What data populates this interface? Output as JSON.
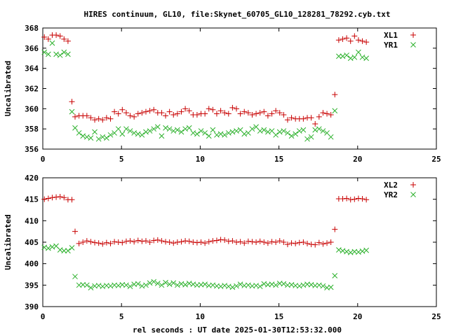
{
  "title": "HIRES continuum, GL10, file:Skynet_60705_GL10_128281_78292.cyb.txt",
  "xlabel": "rel seconds : UT date 2025-01-30T12:53:32.000",
  "colors": {
    "red": "#c80000",
    "green": "#2ab02a"
  },
  "chart_data": [
    {
      "type": "scatter",
      "ylabel": "Uncalibrated",
      "xlim": [
        0,
        25
      ],
      "ylim": [
        356,
        368
      ],
      "xticks": [
        0,
        5,
        10,
        15,
        20,
        25
      ],
      "yticks": [
        356,
        358,
        360,
        362,
        364,
        366,
        368
      ],
      "legend_position": "top-right",
      "series": [
        {
          "name": "XL1",
          "marker": "plus",
          "color": "#c80000",
          "x": [
            0.1,
            0.35,
            0.6,
            0.85,
            1.1,
            1.35,
            1.6,
            1.85,
            2.05,
            2.3,
            2.55,
            2.8,
            3.05,
            3.3,
            3.55,
            3.8,
            4.05,
            4.3,
            4.55,
            4.8,
            5.05,
            5.3,
            5.55,
            5.8,
            6.05,
            6.3,
            6.55,
            6.8,
            7.05,
            7.3,
            7.55,
            7.8,
            8.05,
            8.3,
            8.55,
            8.8,
            9.05,
            9.3,
            9.55,
            9.8,
            10.05,
            10.3,
            10.55,
            10.8,
            11.05,
            11.3,
            11.55,
            11.8,
            12.05,
            12.3,
            12.55,
            12.8,
            13.05,
            13.3,
            13.55,
            13.8,
            14.05,
            14.3,
            14.55,
            14.8,
            15.05,
            15.3,
            15.55,
            15.8,
            16.05,
            16.3,
            16.55,
            16.8,
            17.05,
            17.3,
            17.55,
            17.8,
            18.05,
            18.3,
            18.55,
            18.8,
            19.05,
            19.3,
            19.55,
            19.8,
            20.05,
            20.3,
            20.55
          ],
          "y": [
            367.1,
            366.9,
            367.3,
            367.3,
            367.2,
            366.9,
            366.7,
            360.7,
            359.2,
            359.3,
            359.3,
            359.3,
            359.1,
            358.9,
            359.0,
            358.9,
            359.1,
            359.0,
            359.7,
            359.5,
            359.9,
            359.6,
            359.3,
            359.2,
            359.5,
            359.6,
            359.7,
            359.8,
            359.9,
            359.6,
            359.6,
            359.3,
            359.7,
            359.4,
            359.5,
            359.7,
            360.0,
            359.8,
            359.4,
            359.4,
            359.5,
            359.5,
            360.0,
            359.9,
            359.5,
            359.8,
            359.6,
            359.5,
            360.1,
            360.0,
            359.5,
            359.7,
            359.6,
            359.4,
            359.5,
            359.6,
            359.7,
            359.3,
            359.5,
            359.8,
            359.6,
            359.4,
            358.9,
            359.1,
            359.0,
            359.0,
            359.0,
            359.1,
            359.1,
            358.5,
            359.2,
            359.6,
            359.5,
            359.4,
            361.4,
            366.8,
            366.9,
            367.0,
            366.7,
            367.2,
            366.8,
            366.7,
            366.6
          ]
        },
        {
          "name": "YR1",
          "marker": "cross",
          "color": "#2ab02a",
          "x": [
            0.1,
            0.35,
            0.6,
            0.85,
            1.1,
            1.35,
            1.6,
            1.85,
            2.05,
            2.3,
            2.55,
            2.8,
            3.05,
            3.3,
            3.55,
            3.8,
            4.05,
            4.3,
            4.55,
            4.8,
            5.05,
            5.3,
            5.55,
            5.8,
            6.05,
            6.3,
            6.55,
            6.8,
            7.05,
            7.3,
            7.55,
            7.8,
            8.05,
            8.3,
            8.55,
            8.8,
            9.05,
            9.3,
            9.55,
            9.8,
            10.05,
            10.3,
            10.55,
            10.8,
            11.05,
            11.3,
            11.55,
            11.8,
            12.05,
            12.3,
            12.55,
            12.8,
            13.05,
            13.3,
            13.55,
            13.8,
            14.05,
            14.3,
            14.55,
            14.8,
            15.05,
            15.3,
            15.55,
            15.8,
            16.05,
            16.3,
            16.55,
            16.8,
            17.05,
            17.3,
            17.55,
            17.8,
            18.05,
            18.3,
            18.55,
            18.8,
            19.05,
            19.3,
            19.55,
            19.8,
            20.05,
            20.3,
            20.55
          ],
          "y": [
            365.6,
            365.4,
            366.5,
            365.4,
            365.3,
            365.6,
            365.4,
            359.7,
            358.1,
            357.6,
            357.3,
            357.2,
            357.1,
            357.7,
            357.0,
            357.2,
            357.1,
            357.4,
            357.6,
            358.0,
            357.5,
            358.0,
            357.8,
            357.6,
            357.5,
            357.4,
            357.7,
            357.8,
            358.0,
            358.2,
            357.3,
            358.1,
            358.0,
            357.8,
            357.9,
            357.7,
            358.0,
            358.1,
            357.6,
            357.5,
            357.8,
            357.6,
            357.3,
            357.9,
            357.4,
            357.5,
            357.4,
            357.6,
            357.7,
            357.8,
            357.9,
            357.5,
            357.6,
            358.0,
            358.2,
            357.8,
            357.9,
            357.7,
            357.8,
            357.4,
            357.7,
            357.8,
            357.6,
            357.3,
            357.5,
            357.8,
            357.9,
            357.0,
            357.2,
            357.9,
            358.0,
            357.8,
            357.6,
            357.2,
            359.8,
            365.2,
            365.2,
            365.3,
            365.0,
            365.1,
            365.6,
            365.1,
            365.0
          ]
        }
      ]
    },
    {
      "type": "scatter",
      "ylabel": "Uncalibrated",
      "xlim": [
        0,
        25
      ],
      "ylim": [
        390,
        420
      ],
      "xticks": [
        0,
        5,
        10,
        15,
        20,
        25
      ],
      "yticks": [
        390,
        395,
        400,
        405,
        410,
        415,
        420
      ],
      "legend_position": "top-right",
      "series": [
        {
          "name": "XL2",
          "marker": "plus",
          "color": "#c80000",
          "x": [
            0.1,
            0.35,
            0.6,
            0.85,
            1.1,
            1.35,
            1.6,
            1.85,
            2.05,
            2.3,
            2.55,
            2.8,
            3.05,
            3.3,
            3.55,
            3.8,
            4.05,
            4.3,
            4.55,
            4.8,
            5.05,
            5.3,
            5.55,
            5.8,
            6.05,
            6.3,
            6.55,
            6.8,
            7.05,
            7.3,
            7.55,
            7.8,
            8.05,
            8.3,
            8.55,
            8.8,
            9.05,
            9.3,
            9.55,
            9.8,
            10.05,
            10.3,
            10.55,
            10.8,
            11.05,
            11.3,
            11.55,
            11.8,
            12.05,
            12.3,
            12.55,
            12.8,
            13.05,
            13.3,
            13.55,
            13.8,
            14.05,
            14.3,
            14.55,
            14.8,
            15.05,
            15.3,
            15.55,
            15.8,
            16.05,
            16.3,
            16.55,
            16.8,
            17.05,
            17.3,
            17.55,
            17.8,
            18.05,
            18.3,
            18.55,
            18.8,
            19.05,
            19.3,
            19.55,
            19.8,
            20.05,
            20.3,
            20.55
          ],
          "y": [
            415.0,
            415.2,
            415.4,
            415.5,
            415.6,
            415.4,
            414.9,
            414.9,
            407.5,
            404.7,
            405.0,
            405.3,
            405.1,
            404.9,
            404.8,
            404.6,
            404.9,
            404.7,
            405.1,
            405.0,
            404.9,
            405.2,
            405.3,
            405.1,
            405.4,
            405.2,
            405.3,
            405.0,
            405.4,
            405.5,
            405.3,
            405.1,
            405.0,
            404.8,
            405.0,
            405.1,
            405.3,
            405.2,
            405.0,
            404.9,
            405.0,
            404.8,
            405.1,
            405.3,
            405.4,
            405.6,
            405.5,
            405.2,
            405.3,
            405.0,
            405.1,
            404.8,
            405.2,
            405.1,
            405.0,
            405.2,
            405.0,
            404.8,
            405.1,
            405.0,
            405.3,
            405.0,
            404.5,
            404.8,
            404.7,
            404.9,
            405.0,
            404.7,
            404.5,
            404.4,
            404.9,
            404.6,
            404.8,
            405.0,
            408.0,
            415.1,
            415.1,
            415.2,
            414.9,
            415.0,
            415.2,
            415.1,
            414.9
          ]
        },
        {
          "name": "YR2",
          "marker": "cross",
          "color": "#2ab02a",
          "x": [
            0.1,
            0.35,
            0.6,
            0.85,
            1.1,
            1.35,
            1.6,
            1.85,
            2.05,
            2.3,
            2.55,
            2.8,
            3.05,
            3.3,
            3.55,
            3.8,
            4.05,
            4.3,
            4.55,
            4.8,
            5.05,
            5.3,
            5.55,
            5.8,
            6.05,
            6.3,
            6.55,
            6.8,
            7.05,
            7.3,
            7.55,
            7.8,
            8.05,
            8.3,
            8.55,
            8.8,
            9.05,
            9.3,
            9.55,
            9.8,
            10.05,
            10.3,
            10.55,
            10.8,
            11.05,
            11.3,
            11.55,
            11.8,
            12.05,
            12.3,
            12.55,
            12.8,
            13.05,
            13.3,
            13.55,
            13.8,
            14.05,
            14.3,
            14.55,
            14.8,
            15.05,
            15.3,
            15.55,
            15.8,
            16.05,
            16.3,
            16.55,
            16.8,
            17.05,
            17.3,
            17.55,
            17.8,
            18.05,
            18.3,
            18.55,
            18.8,
            19.05,
            19.3,
            19.55,
            19.8,
            20.05,
            20.3,
            20.55
          ],
          "y": [
            403.8,
            403.6,
            403.9,
            404.1,
            403.2,
            403.0,
            403.0,
            403.7,
            397.0,
            395.0,
            395.1,
            395.0,
            394.4,
            394.8,
            394.9,
            394.7,
            394.9,
            394.8,
            395.0,
            394.9,
            395.1,
            395.0,
            394.7,
            395.2,
            395.3,
            394.8,
            395.0,
            395.5,
            395.8,
            395.4,
            395.0,
            395.6,
            395.2,
            395.5,
            395.0,
            395.3,
            395.1,
            395.4,
            395.2,
            395.0,
            395.1,
            395.2,
            394.9,
            395.0,
            394.8,
            394.7,
            394.9,
            394.7,
            394.5,
            394.8,
            395.2,
            394.9,
            395.0,
            394.8,
            394.9,
            394.7,
            395.3,
            395.1,
            395.2,
            395.0,
            395.4,
            395.3,
            395.0,
            395.1,
            394.9,
            394.8,
            395.0,
            395.2,
            395.1,
            394.9,
            395.0,
            394.8,
            394.4,
            394.5,
            397.2,
            403.2,
            403.0,
            402.8,
            402.6,
            402.8,
            402.7,
            402.9,
            403.1
          ]
        }
      ]
    }
  ]
}
